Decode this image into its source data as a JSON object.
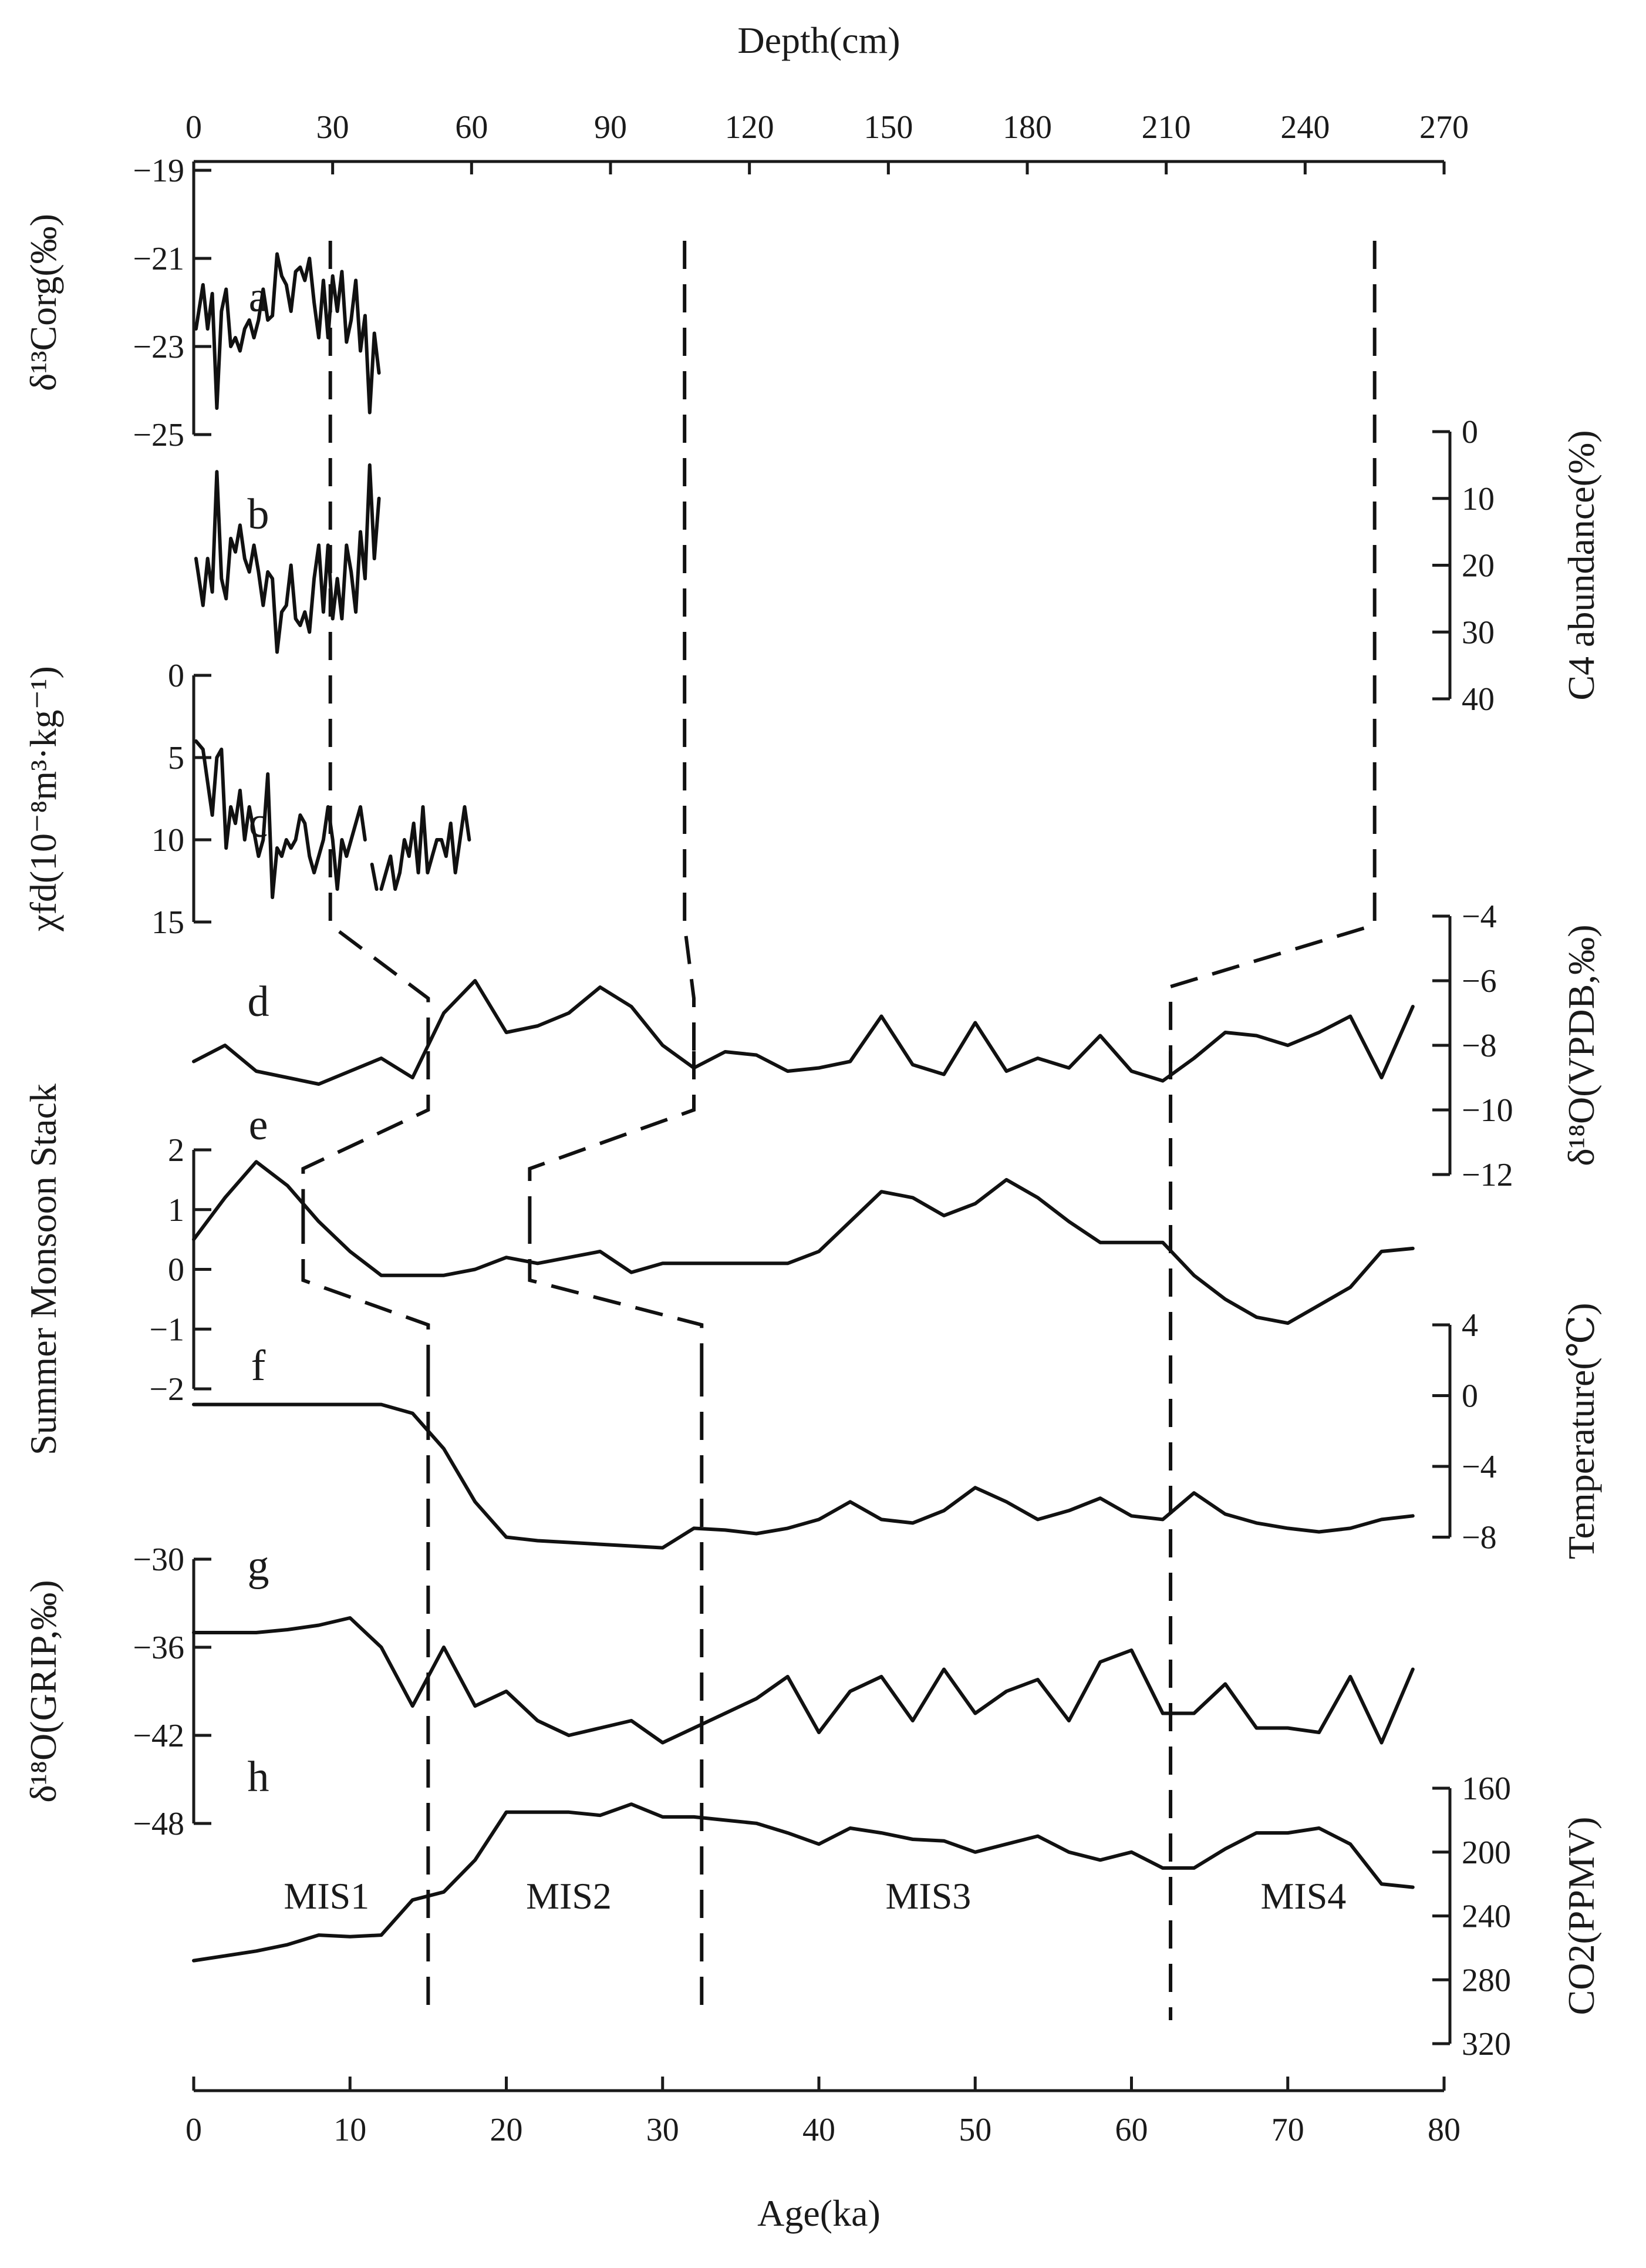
{
  "chart_data": {
    "type": "line",
    "top_axis": {
      "title": "Depth(cm)",
      "range": [
        0,
        270
      ],
      "ticks": [
        0,
        30,
        60,
        90,
        120,
        150,
        180,
        210,
        240,
        270
      ]
    },
    "bottom_axis": {
      "title": "Age(ka)",
      "range": [
        0,
        80
      ],
      "ticks": [
        0,
        10,
        20,
        30,
        40,
        50,
        60,
        70,
        80
      ]
    },
    "panels": [
      {
        "id": "a",
        "letter": "a",
        "side": "left",
        "ylabel": "δ¹³Corg(‰)",
        "ylim": [
          -19,
          -25
        ],
        "ticks": [
          -19,
          -21,
          -23,
          -25
        ],
        "x_axis": "depth",
        "x": [
          0.5,
          2,
          3,
          4,
          5,
          6,
          7,
          8,
          9,
          10,
          11,
          12,
          13,
          14,
          15,
          16,
          17,
          18,
          19,
          20,
          21,
          22,
          23,
          24,
          25,
          26,
          27,
          28,
          29,
          30,
          31,
          32,
          33,
          34,
          35,
          36,
          37,
          38,
          39,
          40
        ],
        "y": [
          -22.6,
          -21.6,
          -22.6,
          -21.8,
          -24.4,
          -22.2,
          -21.7,
          -23.0,
          -22.8,
          -23.1,
          -22.6,
          -22.4,
          -22.8,
          -22.4,
          -21.7,
          -22.4,
          -22.3,
          -20.9,
          -21.4,
          -21.6,
          -22.2,
          -21.3,
          -21.2,
          -21.5,
          -21.0,
          -22.0,
          -22.8,
          -21.5,
          -22.8,
          -21.4,
          -22.2,
          -21.3,
          -22.9,
          -22.4,
          -21.5,
          -23.1,
          -22.3,
          -24.5,
          -22.7,
          -23.6
        ]
      },
      {
        "id": "b",
        "letter": "b",
        "side": "right",
        "ylabel": "C4 abundance(%)",
        "ylim": [
          0,
          40
        ],
        "ticks": [
          0,
          10,
          20,
          30,
          40
        ],
        "x_axis": "depth",
        "x": [
          0.5,
          2,
          3,
          4,
          5,
          6,
          7,
          8,
          9,
          10,
          11,
          12,
          13,
          14,
          15,
          16,
          17,
          18,
          19,
          20,
          21,
          22,
          23,
          24,
          25,
          26,
          27,
          28,
          29,
          30,
          31,
          32,
          33,
          34,
          35,
          36,
          37,
          38,
          39,
          40
        ],
        "y": [
          19,
          26,
          19,
          24,
          6,
          22,
          25,
          16,
          18,
          14,
          19,
          21,
          17,
          21,
          26,
          21,
          22,
          33,
          27,
          26,
          20,
          28,
          29,
          27,
          30,
          22,
          17,
          27,
          17,
          28,
          22,
          28,
          17,
          21,
          27,
          15,
          22,
          5,
          19,
          10
        ]
      },
      {
        "id": "c",
        "letter": "c",
        "side": "left",
        "ylabel": "χfd(10⁻⁸m³·kg⁻¹)",
        "ylim": [
          0,
          15
        ],
        "ticks": [
          0,
          5,
          10,
          15
        ],
        "x_axis": "depth",
        "segments": [
          {
            "x": [
              0.5,
              2,
              4,
              5,
              6,
              7,
              8,
              9,
              10,
              11,
              12,
              13,
              14,
              15,
              16,
              17,
              18,
              19,
              20,
              21,
              22,
              23,
              24,
              25,
              26,
              27,
              28,
              29,
              30,
              31,
              32,
              33,
              34,
              35,
              36,
              37
            ],
            "y": [
              4,
              4.5,
              8.5,
              5,
              4.5,
              10.5,
              8,
              9,
              7,
              10,
              8,
              9.5,
              11,
              10,
              6,
              13.5,
              10.5,
              11,
              10,
              10.5,
              10,
              8.5,
              9,
              11,
              12,
              11,
              10,
              8,
              10,
              13,
              10,
              11,
              10,
              9,
              8,
              10
            ]
          },
          {
            "x": [
              38.5,
              39.5
            ],
            "y": [
              11.5,
              13
            ]
          },
          {
            "x": [
              40.5,
              41.5,
              42.5,
              43.5,
              44.5,
              45.5,
              46.5,
              47.5,
              48.5,
              49.5,
              50.5,
              51.5,
              52.5,
              53.5,
              54.5,
              55.5,
              56.5,
              57.5,
              58.5,
              59.5
            ],
            "y": [
              13,
              12,
              11,
              13,
              12,
              10,
              11,
              9,
              12,
              8,
              12,
              11,
              10,
              10,
              11,
              9,
              12,
              10,
              8,
              10
            ]
          }
        ]
      },
      {
        "id": "d",
        "letter": "d",
        "side": "right",
        "ylabel": "δ¹⁸O(VPDB,‰)",
        "ylim": [
          -4,
          -12
        ],
        "ticks": [
          -4,
          -6,
          -8,
          -10,
          -12
        ],
        "x_axis": "age",
        "x": [
          0,
          2,
          4,
          6,
          8,
          10,
          12,
          14,
          16,
          18,
          20,
          22,
          24,
          26,
          28,
          30,
          32,
          34,
          36,
          38,
          40,
          42,
          44,
          46,
          48,
          50,
          52,
          54,
          56,
          58,
          60,
          62,
          64,
          66,
          68,
          70,
          72,
          74,
          76,
          78
        ],
        "y": [
          -8.5,
          -8,
          -8.8,
          -9,
          -9.2,
          -8.8,
          -8.4,
          -9,
          -7,
          -6,
          -7.6,
          -7.4,
          -7,
          -6.2,
          -6.8,
          -8,
          -8.7,
          -8.2,
          -8.3,
          -8.8,
          -8.7,
          -8.5,
          -7.1,
          -8.6,
          -8.9,
          -7.3,
          -8.8,
          -8.4,
          -8.7,
          -7.7,
          -8.8,
          -9.1,
          -8.4,
          -7.6,
          -7.7,
          -8,
          -7.6,
          -7.1,
          -9,
          -6.8
        ]
      },
      {
        "id": "e",
        "letter": "e",
        "side": "left",
        "ylabel": "Summer Monsoon Stack",
        "ylim": [
          2,
          -2
        ],
        "ticks": [
          2,
          1,
          0,
          -1,
          -2
        ],
        "x_axis": "age",
        "x": [
          0,
          2,
          4,
          6,
          8,
          10,
          12,
          14,
          16,
          18,
          20,
          22,
          24,
          26,
          28,
          30,
          32,
          34,
          36,
          38,
          40,
          42,
          44,
          46,
          48,
          50,
          52,
          54,
          56,
          58,
          60,
          62,
          64,
          66,
          68,
          70,
          72,
          74,
          76,
          78
        ],
        "y": [
          0.5,
          1.2,
          1.8,
          1.4,
          0.8,
          0.3,
          -0.1,
          -0.1,
          -0.1,
          0,
          0.2,
          0.1,
          0.2,
          0.3,
          -0.05,
          0.1,
          0.1,
          0.1,
          0.1,
          0.1,
          0.3,
          0.8,
          1.3,
          1.2,
          0.9,
          1.1,
          1.5,
          1.2,
          0.8,
          0.45,
          0.45,
          0.45,
          -0.1,
          -0.5,
          -0.8,
          -0.9,
          -0.6,
          -0.3,
          0.3,
          0.35
        ]
      },
      {
        "id": "f",
        "letter": "f",
        "side": "right",
        "ylabel": "Temperature(℃)",
        "ylim": [
          4,
          -12
        ],
        "ticks": [
          4,
          0,
          -4,
          -8
        ],
        "x_axis": "age",
        "x": [
          0,
          2,
          4,
          6,
          8,
          10,
          12,
          14,
          16,
          18,
          20,
          22,
          24,
          26,
          28,
          30,
          32,
          34,
          36,
          38,
          40,
          42,
          44,
          46,
          48,
          50,
          52,
          54,
          56,
          58,
          60,
          62,
          64,
          66,
          68,
          70,
          72,
          74,
          76,
          78
        ],
        "y": [
          -0.5,
          -0.5,
          -0.5,
          -0.5,
          -0.5,
          -0.5,
          -0.5,
          -1,
          -3,
          -6,
          -8,
          -8.2,
          -8.3,
          -8.4,
          -8.5,
          -8.6,
          -7.5,
          -7.6,
          -7.8,
          -7.5,
          -7,
          -6,
          -7,
          -7.2,
          -6.5,
          -5.2,
          -6,
          -7,
          -6.5,
          -5.8,
          -6.8,
          -7,
          -5.5,
          -6.7,
          -7.2,
          -7.5,
          -7.7,
          -7.5,
          -7,
          -6.8
        ]
      },
      {
        "id": "g",
        "letter": "g",
        "side": "left",
        "ylabel": "δ¹⁸O(GRIP,‰)",
        "ylim": [
          -30,
          -48
        ],
        "ticks": [
          -30,
          -36,
          -42,
          -48
        ],
        "x_axis": "age",
        "x": [
          0,
          2,
          4,
          6,
          8,
          10,
          12,
          14,
          16,
          18,
          20,
          22,
          24,
          26,
          28,
          30,
          32,
          34,
          36,
          38,
          40,
          42,
          44,
          46,
          48,
          50,
          52,
          54,
          56,
          58,
          60,
          62,
          64,
          66,
          68,
          70,
          72,
          74,
          76,
          78
        ],
        "y": [
          -35,
          -35,
          -35,
          -34.8,
          -34.5,
          -34,
          -36,
          -40,
          -36,
          -40,
          -39,
          -41,
          -42,
          -41.5,
          -41,
          -42.5,
          -41.5,
          -40.5,
          -39.5,
          -38,
          -41.8,
          -39,
          -38,
          -41,
          -37.5,
          -40.5,
          -39,
          -38.2,
          -41,
          -37,
          -36.2,
          -40.5,
          -40.5,
          -38.5,
          -41.5,
          -41.5,
          -41.8,
          -38,
          -42.5,
          -37.5
        ]
      },
      {
        "id": "h",
        "letter": "h",
        "side": "right",
        "ylabel": "CO2(PPMV)",
        "ylim": [
          160,
          320
        ],
        "ticks": [
          160,
          200,
          240,
          280,
          320
        ],
        "x_axis": "age",
        "x": [
          0,
          2,
          4,
          6,
          8,
          10,
          12,
          14,
          16,
          18,
          20,
          22,
          24,
          26,
          28,
          30,
          32,
          34,
          36,
          38,
          40,
          42,
          44,
          46,
          48,
          50,
          52,
          54,
          56,
          58,
          60,
          62,
          64,
          66,
          68,
          70,
          72,
          74,
          76,
          78
        ],
        "y": [
          268,
          265,
          262,
          258,
          252,
          253,
          252,
          230,
          225,
          205,
          175,
          175,
          175,
          177,
          170,
          178,
          178,
          180,
          182,
          188,
          195,
          185,
          188,
          192,
          193,
          200,
          195,
          190,
          200,
          205,
          200,
          210,
          210,
          198,
          188,
          188,
          185,
          195,
          220,
          222
        ]
      }
    ],
    "correlation_lines_age": [
      {
        "between": [
          "c",
          "d"
        ],
        "from_depth": 29.5,
        "to_age": 15
      },
      {
        "between": [
          "c",
          "d"
        ],
        "from_depth": 106,
        "to_age": 32
      },
      {
        "between": [
          "c",
          "d"
        ],
        "from_depth": 255,
        "to_age": 62.5
      },
      {
        "between": [
          "d",
          "e"
        ],
        "from_age": 15,
        "to_age": 7
      },
      {
        "between": [
          "d",
          "e"
        ],
        "from_age": 32,
        "to_age": 21.5
      },
      {
        "between": [
          "e",
          "f"
        ],
        "from_age": 7,
        "to_age": 15
      },
      {
        "between": [
          "e",
          "f"
        ],
        "from_age": 21.5,
        "to_age": 32.5
      }
    ],
    "stage_boundaries_age": [
      15,
      32.5,
      62.5
    ],
    "stages": [
      {
        "label": "MIS1",
        "age": 8.5
      },
      {
        "label": "MIS2",
        "age": 24
      },
      {
        "label": "MIS3",
        "age": 47
      },
      {
        "label": "MIS4",
        "age": 71
      }
    ]
  }
}
